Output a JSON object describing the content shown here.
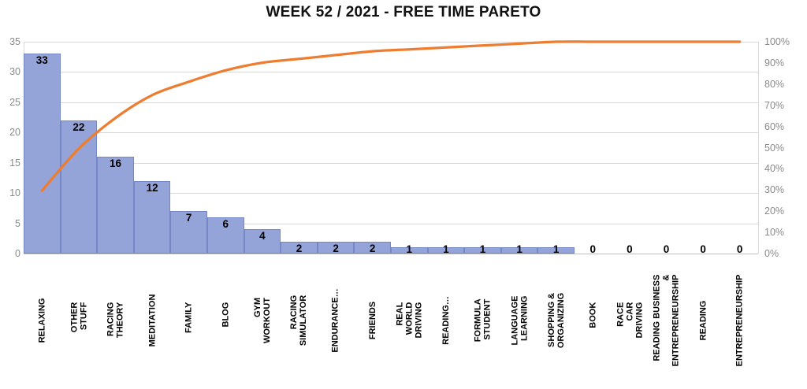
{
  "chart_data": {
    "type": "bar",
    "subtype": "pareto",
    "title": "WEEK 52 / 2021 - FREE TIME PARETO",
    "categories": [
      "RELAXING",
      "OTHER STUFF",
      "RACING THEORY",
      "MEDITATION",
      "FAMILY",
      "BLOG",
      "GYM WORKOUT",
      "RACING SIMULATOR",
      "ENDURANCE…",
      "FRIENDS",
      "REAL WORLD DRIVING",
      "READING…",
      "FORMULA STUDENT",
      "LANGUAGE LEARNING",
      "SHOPPING &\nORGANIZING",
      "BOOK",
      "RACE CAR DRIVING",
      "READING BUSINESS &\nENTREPRENEURSHIP",
      "READING",
      "ENTREPRENEURSHIP"
    ],
    "bar_values": [
      33,
      22,
      16,
      12,
      7,
      6,
      4,
      2,
      2,
      2,
      1,
      1,
      1,
      1,
      1,
      0,
      0,
      0,
      0,
      0
    ],
    "cumulative_line_pct": [
      29.7,
      49.5,
      64.0,
      74.8,
      81.1,
      86.5,
      90.1,
      91.9,
      93.7,
      95.5,
      96.4,
      97.3,
      98.2,
      99.1,
      100,
      100,
      100,
      100,
      100,
      100
    ],
    "left_axis": {
      "min": 0,
      "max": 35,
      "tick_interval": 5,
      "ticks": [
        "0",
        "5",
        "10",
        "15",
        "20",
        "25",
        "30",
        "35"
      ]
    },
    "right_axis": {
      "min": 0,
      "max": 100,
      "ticks": [
        "0%",
        "10%",
        "20%",
        "30%",
        "40%",
        "50%",
        "60%",
        "70%",
        "80%",
        "90%",
        "100%"
      ]
    },
    "grid": true,
    "legend": "none",
    "colors": {
      "bar_fill": "#94a3d8",
      "bar_border": "#7587c6",
      "line": "#ed7d31",
      "grid": "#d9d9d9",
      "axis_line": "#bfbfbf",
      "axis_text": "#8a8a8a",
      "title_text": "#111111",
      "value_label_text": "#000000"
    }
  }
}
